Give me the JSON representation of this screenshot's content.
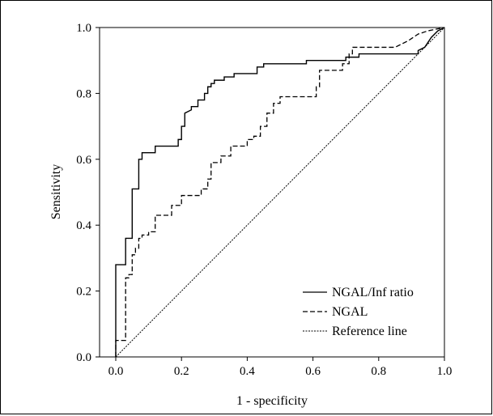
{
  "chart_data": {
    "type": "line",
    "title": "",
    "xlabel": "1 - specificity",
    "ylabel": "Sensitivity",
    "xlim": [
      0,
      1
    ],
    "ylim": [
      0,
      1
    ],
    "xticks": [
      "0.0",
      "0.2",
      "0.4",
      "0.6",
      "0.8",
      "1.0"
    ],
    "yticks": [
      "0.0",
      "0.2",
      "0.4",
      "0.6",
      "0.8",
      "1.0"
    ],
    "grid": false,
    "legend_position": "bottom-right",
    "series": [
      {
        "name": "NGAL/Inf ratio",
        "style": "solid",
        "color": "#000000",
        "points": [
          [
            0.0,
            0.0
          ],
          [
            0.0,
            0.28
          ],
          [
            0.03,
            0.28
          ],
          [
            0.03,
            0.36
          ],
          [
            0.05,
            0.36
          ],
          [
            0.05,
            0.51
          ],
          [
            0.07,
            0.51
          ],
          [
            0.07,
            0.6
          ],
          [
            0.08,
            0.6
          ],
          [
            0.08,
            0.62
          ],
          [
            0.12,
            0.62
          ],
          [
            0.12,
            0.64
          ],
          [
            0.19,
            0.64
          ],
          [
            0.19,
            0.66
          ],
          [
            0.2,
            0.66
          ],
          [
            0.2,
            0.7
          ],
          [
            0.21,
            0.7
          ],
          [
            0.21,
            0.74
          ],
          [
            0.23,
            0.75
          ],
          [
            0.23,
            0.76
          ],
          [
            0.25,
            0.76
          ],
          [
            0.25,
            0.78
          ],
          [
            0.27,
            0.78
          ],
          [
            0.27,
            0.8
          ],
          [
            0.28,
            0.8
          ],
          [
            0.28,
            0.82
          ],
          [
            0.29,
            0.82
          ],
          [
            0.29,
            0.83
          ],
          [
            0.3,
            0.83
          ],
          [
            0.3,
            0.84
          ],
          [
            0.33,
            0.84
          ],
          [
            0.33,
            0.85
          ],
          [
            0.36,
            0.85
          ],
          [
            0.36,
            0.86
          ],
          [
            0.43,
            0.86
          ],
          [
            0.43,
            0.88
          ],
          [
            0.45,
            0.88
          ],
          [
            0.45,
            0.89
          ],
          [
            0.58,
            0.89
          ],
          [
            0.58,
            0.9
          ],
          [
            0.7,
            0.9
          ],
          [
            0.7,
            0.91
          ],
          [
            0.74,
            0.91
          ],
          [
            0.74,
            0.92
          ],
          [
            0.92,
            0.92
          ],
          [
            0.92,
            0.93
          ],
          [
            0.94,
            0.94
          ],
          [
            0.96,
            0.97
          ],
          [
            0.98,
            0.99
          ],
          [
            1.0,
            1.0
          ]
        ]
      },
      {
        "name": "NGAL",
        "style": "dashed",
        "color": "#000000",
        "points": [
          [
            0.0,
            0.0
          ],
          [
            0.0,
            0.05
          ],
          [
            0.03,
            0.05
          ],
          [
            0.03,
            0.24
          ],
          [
            0.04,
            0.24
          ],
          [
            0.04,
            0.25
          ],
          [
            0.05,
            0.25
          ],
          [
            0.05,
            0.31
          ],
          [
            0.06,
            0.31
          ],
          [
            0.06,
            0.33
          ],
          [
            0.07,
            0.33
          ],
          [
            0.07,
            0.36
          ],
          [
            0.08,
            0.36
          ],
          [
            0.08,
            0.37
          ],
          [
            0.1,
            0.37
          ],
          [
            0.1,
            0.38
          ],
          [
            0.12,
            0.38
          ],
          [
            0.12,
            0.43
          ],
          [
            0.17,
            0.43
          ],
          [
            0.17,
            0.46
          ],
          [
            0.2,
            0.46
          ],
          [
            0.2,
            0.49
          ],
          [
            0.26,
            0.49
          ],
          [
            0.26,
            0.51
          ],
          [
            0.28,
            0.51
          ],
          [
            0.28,
            0.54
          ],
          [
            0.29,
            0.54
          ],
          [
            0.29,
            0.59
          ],
          [
            0.32,
            0.59
          ],
          [
            0.32,
            0.61
          ],
          [
            0.35,
            0.61
          ],
          [
            0.35,
            0.64
          ],
          [
            0.4,
            0.64
          ],
          [
            0.4,
            0.66
          ],
          [
            0.42,
            0.66
          ],
          [
            0.42,
            0.67
          ],
          [
            0.44,
            0.67
          ],
          [
            0.44,
            0.7
          ],
          [
            0.46,
            0.7
          ],
          [
            0.46,
            0.74
          ],
          [
            0.48,
            0.74
          ],
          [
            0.48,
            0.77
          ],
          [
            0.5,
            0.77
          ],
          [
            0.5,
            0.79
          ],
          [
            0.61,
            0.79
          ],
          [
            0.61,
            0.82
          ],
          [
            0.62,
            0.82
          ],
          [
            0.62,
            0.87
          ],
          [
            0.69,
            0.87
          ],
          [
            0.69,
            0.89
          ],
          [
            0.71,
            0.89
          ],
          [
            0.71,
            0.92
          ],
          [
            0.72,
            0.92
          ],
          [
            0.72,
            0.94
          ],
          [
            0.85,
            0.94
          ],
          [
            0.87,
            0.95
          ],
          [
            0.89,
            0.96
          ],
          [
            0.92,
            0.98
          ],
          [
            0.95,
            0.99
          ],
          [
            1.0,
            1.0
          ]
        ]
      },
      {
        "name": "Reference line",
        "style": "dotted",
        "color": "#000000",
        "points": [
          [
            0.0,
            0.0
          ],
          [
            1.0,
            1.0
          ]
        ]
      }
    ]
  }
}
